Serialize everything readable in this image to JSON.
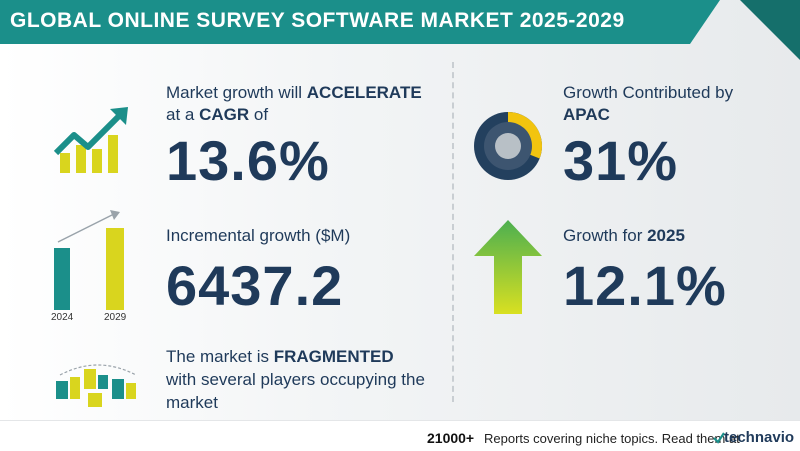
{
  "title": "GLOBAL ONLINE SURVEY SOFTWARE MARKET 2025-2029",
  "cagr": {
    "line1_prefix": "Market growth will ",
    "line1_bold": "ACCELERATE",
    "line2_prefix": "at a ",
    "line2_bold": "CAGR",
    "line2_suffix": "  of",
    "value": "13.6%"
  },
  "incremental": {
    "label": "Incremental growth ($M)",
    "value": "6437.2",
    "year_start": "2024",
    "year_end": "2029"
  },
  "market": {
    "line1_prefix": "The market is ",
    "line1_bold": "FRAGMENTED",
    "line2": "with several players occupying the",
    "line3": "market"
  },
  "region": {
    "label": "Growth Contributed by",
    "name": "APAC",
    "value": "31%",
    "share": 0.31
  },
  "yoy": {
    "label_prefix": "Growth for ",
    "year": "2025",
    "value": "12.1%"
  },
  "footer": {
    "count": "21000+",
    "text": "Reports covering niche topics. Read them at",
    "brand_icon": "technavio-check-icon",
    "brand": "technavio"
  },
  "colors": {
    "teal": "#1b8f8a",
    "navy": "#1f3a5a",
    "yellow": "#d9d51e",
    "gold": "#f2c40f",
    "green": "#4caf50"
  }
}
